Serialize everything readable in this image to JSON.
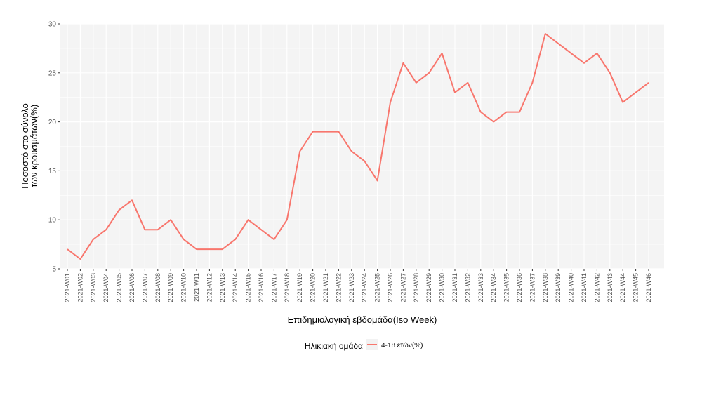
{
  "chart_data": {
    "type": "line",
    "title": "",
    "xlabel": "Επιδημιολογική εβδομάδα(Iso Week)",
    "ylabel_lines": [
      "Ποσοστό στο σύνολο",
      "των κρουσμάτων(%)"
    ],
    "ylim": [
      5,
      30
    ],
    "yticks": [
      5,
      10,
      15,
      20,
      25,
      30
    ],
    "grid": true,
    "legend_position": "bottom",
    "legend_title": "Ηλικιακή ομάδα",
    "categories": [
      "2021-W01",
      "2021-W02",
      "2021-W03",
      "2021-W04",
      "2021-W05",
      "2021-W06",
      "2021-W07",
      "2021-W08",
      "2021-W09",
      "2021-W10",
      "2021-W11",
      "2021-W12",
      "2021-W13",
      "2021-W14",
      "2021-W15",
      "2021-W16",
      "2021-W17",
      "2021-W18",
      "2021-W19",
      "2021-W20",
      "2021-W21",
      "2021-W22",
      "2021-W23",
      "2021-W24",
      "2021-W25",
      "2021-W26",
      "2021-W27",
      "2021-W28",
      "2021-W29",
      "2021-W30",
      "2021-W31",
      "2021-W32",
      "2021-W33",
      "2021-W34",
      "2021-W35",
      "2021-W36",
      "2021-W37",
      "2021-W38",
      "2021-W39",
      "2021-W40",
      "2021-W41",
      "2021-W42",
      "2021-W43",
      "2021-W44",
      "2021-W45",
      "2021-W46"
    ],
    "series": [
      {
        "name": "4-18 ετών(%)",
        "color": "#f8766d",
        "values": [
          7,
          6,
          8,
          9,
          11,
          12,
          9,
          9,
          10,
          8,
          7,
          7,
          7,
          8,
          10,
          9,
          8,
          10,
          17,
          19,
          19,
          19,
          17,
          16,
          14,
          22,
          26,
          24,
          25,
          27,
          23,
          24,
          21,
          20,
          21,
          21,
          24,
          29,
          28,
          27,
          26,
          27,
          25,
          22,
          23,
          24
        ]
      }
    ]
  }
}
